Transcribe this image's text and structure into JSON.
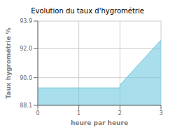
{
  "chart_data": {
    "type": "area",
    "title": "Evolution du taux d'hygrométrie",
    "xlabel": "heure par heure",
    "ylabel": "Taux hygrométrie %",
    "x": [
      0,
      2,
      2,
      3
    ],
    "values": [
      89.3,
      89.3,
      89.5,
      92.6
    ],
    "color": "#70c8e0",
    "xlim": [
      0,
      3
    ],
    "ylim": [
      88.1,
      93.9
    ],
    "xticks": [
      0,
      1,
      2,
      3
    ],
    "yticks": [
      88.1,
      {
        "value": 90.0,
        "label": "90.0"
      },
      {
        "value": 92.0,
        "label": "92.0"
      },
      93.9
    ],
    "grid": true
  }
}
